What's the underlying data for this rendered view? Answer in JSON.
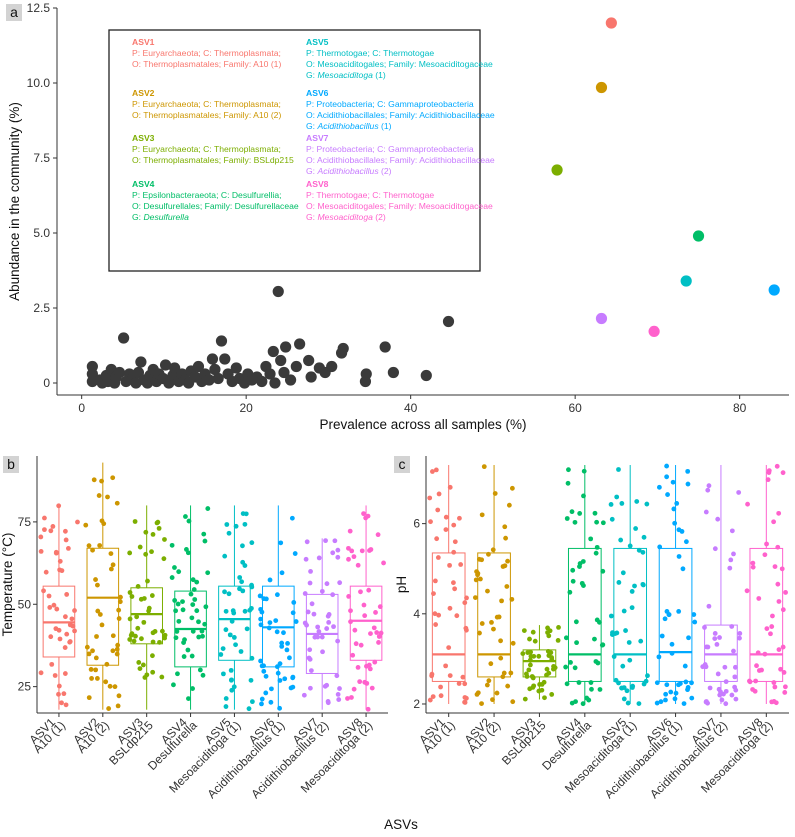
{
  "colors": {
    "ASV1": "#f8766d",
    "ASV2": "#cd9600",
    "ASV3": "#7cae00",
    "ASV4": "#00be67",
    "ASV5": "#00bfc4",
    "ASV6": "#00a9ff",
    "ASV7": "#c77cff",
    "ASV8": "#ff61cc",
    "other": "#3a3a3a"
  },
  "panel_letters": {
    "a": "a",
    "b": "b",
    "c": "c"
  },
  "legend": [
    {
      "id": "ASV1",
      "name": "ASV1",
      "lines": [
        "P: Euryarchaeota; C: Thermoplasmata;",
        "O: Thermoplasmatales; Family: A10 (1)"
      ],
      "genus": null
    },
    {
      "id": "ASV2",
      "name": "ASV2",
      "lines": [
        "P: Euryarchaeota; C: Thermoplasmata;",
        "O: Thermoplasmatales; Family: A10 (2)"
      ],
      "genus": null
    },
    {
      "id": "ASV3",
      "name": "ASV3",
      "lines": [
        "P: Euryarchaeota; C: Thermoplasmata;",
        "O: Thermoplasmatales; Family: BSLdp215"
      ],
      "genus": null
    },
    {
      "id": "ASV4",
      "name": "ASV4",
      "lines": [
        "P: Epsilonbacteraeota; C: Desulfurellia;",
        "O: Desulfurellales; Family: Desulfurellaceae"
      ],
      "genus": {
        "prefix": "G: ",
        "name": "Desulfurella",
        "suffix": ""
      }
    },
    {
      "id": "ASV5",
      "name": "ASV5",
      "lines": [
        "P: Thermotogae; C: Thermotogae",
        "O: Mesoaciditogales; Family: Mesoaciditogaceae"
      ],
      "genus": {
        "prefix": "G: ",
        "name": "Mesoaciditoga",
        "suffix": " (1)"
      }
    },
    {
      "id": "ASV6",
      "name": "ASV6",
      "lines": [
        "P: Proteobacteria; C: Gammaproteobacteria",
        "O: Acidithiobacillales; Family: Acidithiobacillaceae"
      ],
      "genus": {
        "prefix": "G: ",
        "name": "Acidithiobacillus",
        "suffix": " (1)"
      }
    },
    {
      "id": "ASV7",
      "name": "ASV7",
      "lines": [
        "P: Proteobacteria; C: Gammaproteobacteria",
        "O: Acidithiobacillales; Family: Acidithiobacillaceae"
      ],
      "genus": {
        "prefix": "G: ",
        "name": "Acidithiobacillus",
        "suffix": " (2)"
      }
    },
    {
      "id": "ASV8",
      "name": "ASV8",
      "lines": [
        "P: Thermotogae; C: Thermotogae",
        "O: Mesoaciditogales; Family: Mesoaciditogaceae"
      ],
      "genus": {
        "prefix": "G: ",
        "name": "Mesoaciditoga",
        "suffix": " (2)"
      }
    }
  ],
  "chart_data": [
    {
      "id": "a",
      "type": "scatter",
      "xlabel": "Prevalence across all samples (%)",
      "ylabel": "Abundance in the community (%)",
      "xlim": [
        -3,
        86
      ],
      "ylim": [
        -0.4,
        12.5
      ],
      "xticks": [
        0,
        20,
        40,
        60,
        80
      ],
      "yticks": [
        0,
        2.5,
        5.0,
        7.5,
        10.0,
        12.5
      ],
      "ytick_labels": [
        "0",
        "2.5",
        "5.0",
        "7.5",
        "10.0",
        "12.5"
      ],
      "highlight": [
        {
          "asv": "ASV1",
          "x": 64.4,
          "y": 12.0
        },
        {
          "asv": "ASV2",
          "x": 63.2,
          "y": 9.85
        },
        {
          "asv": "ASV3",
          "x": 57.8,
          "y": 7.1
        },
        {
          "asv": "ASV4",
          "x": 75.0,
          "y": 4.9
        },
        {
          "asv": "ASV5",
          "x": 73.5,
          "y": 3.4
        },
        {
          "asv": "ASV6",
          "x": 84.2,
          "y": 3.1
        },
        {
          "asv": "ASV7",
          "x": 63.2,
          "y": 2.15
        },
        {
          "asv": "ASV8",
          "x": 69.6,
          "y": 1.72
        }
      ],
      "other": [
        [
          1.3,
          0.05
        ],
        [
          1.3,
          0.3
        ],
        [
          1.3,
          0.55
        ],
        [
          2.2,
          0.1
        ],
        [
          2.5,
          0.0
        ],
        [
          3.0,
          0.25
        ],
        [
          3.2,
          0.05
        ],
        [
          3.6,
          0.45
        ],
        [
          4.0,
          0.0
        ],
        [
          4.2,
          0.2
        ],
        [
          4.6,
          0.35
        ],
        [
          5.1,
          1.5
        ],
        [
          5.4,
          0.05
        ],
        [
          5.8,
          0.3
        ],
        [
          6.2,
          0.15
        ],
        [
          6.6,
          0.0
        ],
        [
          6.9,
          0.35
        ],
        [
          7.2,
          0.7
        ],
        [
          7.6,
          0.1
        ],
        [
          8.0,
          0.0
        ],
        [
          8.3,
          0.25
        ],
        [
          8.7,
          0.45
        ],
        [
          9.1,
          0.05
        ],
        [
          9.4,
          0.3
        ],
        [
          9.9,
          0.15
        ],
        [
          10.2,
          0.6
        ],
        [
          10.6,
          0.0
        ],
        [
          11.1,
          0.25
        ],
        [
          11.3,
          0.5
        ],
        [
          11.8,
          0.05
        ],
        [
          12.2,
          0.3
        ],
        [
          12.6,
          0.1
        ],
        [
          13.0,
          0.0
        ],
        [
          13.3,
          0.4
        ],
        [
          13.8,
          0.2
        ],
        [
          14.2,
          0.55
        ],
        [
          14.6,
          0.05
        ],
        [
          15.0,
          0.3
        ],
        [
          15.5,
          0.1
        ],
        [
          15.9,
          0.8
        ],
        [
          16.2,
          0.45
        ],
        [
          16.6,
          0.15
        ],
        [
          17.0,
          1.4
        ],
        [
          17.4,
          0.8
        ],
        [
          17.8,
          0.3
        ],
        [
          18.3,
          0.05
        ],
        [
          18.8,
          0.5
        ],
        [
          19.2,
          0.15
        ],
        [
          19.8,
          0.0
        ],
        [
          20.2,
          0.3
        ],
        [
          20.7,
          0.1
        ],
        [
          21.3,
          0.2
        ],
        [
          21.9,
          0.05
        ],
        [
          22.4,
          0.55
        ],
        [
          22.9,
          0.3
        ],
        [
          23.3,
          1.05
        ],
        [
          23.5,
          0.0
        ],
        [
          23.9,
          3.05
        ],
        [
          24.2,
          0.75
        ],
        [
          24.6,
          0.35
        ],
        [
          24.8,
          1.2
        ],
        [
          25.4,
          0.1
        ],
        [
          26.1,
          0.55
        ],
        [
          26.5,
          1.3
        ],
        [
          27.6,
          0.75
        ],
        [
          27.9,
          0.2
        ],
        [
          28.9,
          0.5
        ],
        [
          29.6,
          0.35
        ],
        [
          30.4,
          0.55
        ],
        [
          31.6,
          1.0
        ],
        [
          31.8,
          1.15
        ],
        [
          34.5,
          0.05
        ],
        [
          34.6,
          0.3
        ],
        [
          36.9,
          1.2
        ],
        [
          37.9,
          0.35
        ],
        [
          41.9,
          0.25
        ],
        [
          44.6,
          2.05
        ]
      ]
    },
    {
      "id": "b",
      "type": "box",
      "ylabel": "Temperature (°C)",
      "ylim": [
        17,
        95
      ],
      "yticks": [
        25,
        50,
        75
      ],
      "categories": [
        "ASV1\nA10 (1)",
        "ASV2\nA10 (2)",
        "ASV3\nBSLdp215",
        "ASV4\nDesulfurella",
        "ASV5\nMesoaciditoga (1)",
        "ASV6\nAcidithiobacillus (1)",
        "ASV7\nAcidithiobacillus (2)",
        "ASV8\nMesoaciditoga (2)"
      ],
      "boxes": [
        {
          "asv": "ASV1",
          "q1": 34,
          "median": 44.5,
          "q3": 55.5,
          "whisker_low": 18,
          "whisker_high": 80
        },
        {
          "asv": "ASV2",
          "q1": 31.5,
          "median": 52,
          "q3": 67,
          "whisker_low": 18,
          "whisker_high": 93
        },
        {
          "asv": "ASV3",
          "q1": 38,
          "median": 47,
          "q3": 55,
          "whisker_low": 18,
          "whisker_high": 80
        },
        {
          "asv": "ASV4",
          "q1": 31,
          "median": 42.5,
          "q3": 54,
          "whisker_low": 18,
          "whisker_high": 80
        },
        {
          "asv": "ASV5",
          "q1": 33,
          "median": 45.5,
          "q3": 55.5,
          "whisker_low": 18,
          "whisker_high": 80
        },
        {
          "asv": "ASV6",
          "q1": 31,
          "median": 43,
          "q3": 55.5,
          "whisker_low": 18,
          "whisker_high": 80
        },
        {
          "asv": "ASV7",
          "q1": 29,
          "median": 41,
          "q3": 53,
          "whisker_low": 18,
          "whisker_high": 70
        },
        {
          "asv": "ASV8",
          "q1": 33,
          "median": 45,
          "q3": 55.5,
          "whisker_low": 18,
          "whisker_high": 80
        }
      ],
      "xlabel": "ASVs"
    },
    {
      "id": "c",
      "type": "box",
      "ylabel": "pH",
      "ylim": [
        1.8,
        7.5
      ],
      "yticks": [
        2,
        4,
        6
      ],
      "categories": [
        "ASV1\nA10 (1)",
        "ASV2\nA10 (2)",
        "ASV3\nBSLdp215",
        "ASV4\nDesulfurella",
        "ASV5\nMesoaciditoga (1)",
        "ASV6\nAcidithiobacillus (1)",
        "ASV7\nAcidithiobacillus (2)",
        "ASV8\nMesoaciditoga (2)"
      ],
      "boxes": [
        {
          "asv": "ASV1",
          "q1": 2.5,
          "median": 3.1,
          "q3": 5.35,
          "whisker_low": 2.0,
          "whisker_high": 7.3
        },
        {
          "asv": "ASV2",
          "q1": 2.6,
          "median": 3.1,
          "q3": 5.35,
          "whisker_low": 2.0,
          "whisker_high": 7.3
        },
        {
          "asv": "ASV3",
          "q1": 2.6,
          "median": 2.95,
          "q3": 3.2,
          "whisker_low": 2.1,
          "whisker_high": 3.75
        },
        {
          "asv": "ASV4",
          "q1": 2.5,
          "median": 3.1,
          "q3": 5.45,
          "whisker_low": 2.0,
          "whisker_high": 7.3
        },
        {
          "asv": "ASV5",
          "q1": 2.5,
          "median": 3.1,
          "q3": 5.45,
          "whisker_low": 2.0,
          "whisker_high": 7.3
        },
        {
          "asv": "ASV6",
          "q1": 2.5,
          "median": 3.15,
          "q3": 5.45,
          "whisker_low": 2.0,
          "whisker_high": 7.3
        },
        {
          "asv": "ASV7",
          "q1": 2.5,
          "median": 3.1,
          "q3": 3.75,
          "whisker_low": 2.0,
          "whisker_high": 7.3
        },
        {
          "asv": "ASV8",
          "q1": 2.5,
          "median": 3.1,
          "q3": 5.45,
          "whisker_low": 2.0,
          "whisker_high": 7.3
        }
      ],
      "xlabel": "ASVs"
    }
  ]
}
